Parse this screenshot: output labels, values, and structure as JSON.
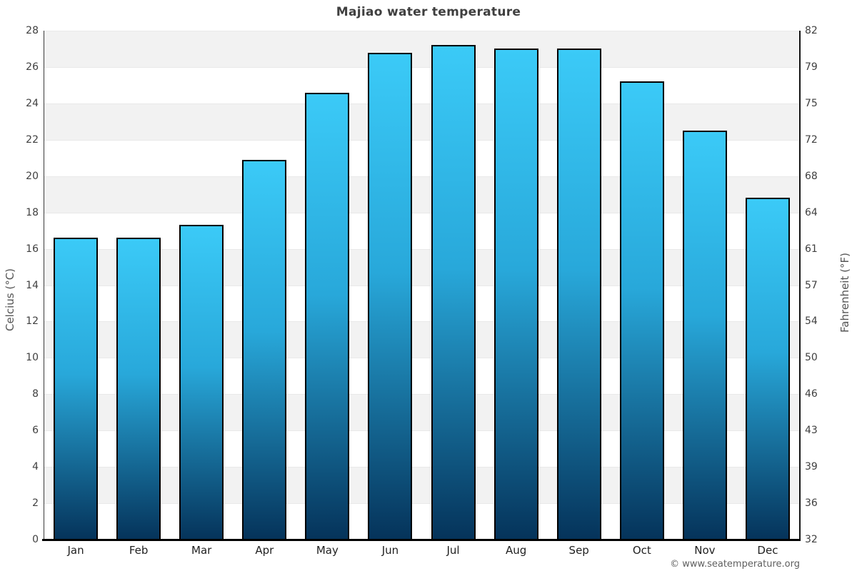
{
  "title": "Majiao water temperature",
  "watermark": "© www.seatemperature.org",
  "colors": {
    "bar_gradient_top": "#3bcaf7",
    "bar_gradient_mid": "#28a8da",
    "bar_gradient_bottom": "#05335a",
    "bar_border": "#000000",
    "band_gray": "#f2f2f2",
    "title_text": "#3f3f3f",
    "tick_text": "#3f3f3f",
    "month_text": "#1f1f1f",
    "watermark_text": "#5f5f5f"
  },
  "chart_data": {
    "type": "bar",
    "title": "Majiao water temperature",
    "categories": [
      "Jan",
      "Feb",
      "Mar",
      "Apr",
      "May",
      "Jun",
      "Jul",
      "Aug",
      "Sep",
      "Oct",
      "Nov",
      "Dec"
    ],
    "series": [
      {
        "name": "Celcius (°C)",
        "values": [
          16.6,
          16.6,
          17.3,
          20.9,
          24.6,
          26.8,
          27.2,
          27.0,
          27.0,
          25.2,
          22.5,
          18.8
        ]
      }
    ],
    "xlabel": "",
    "ylabel_left": "Celcius (°C)",
    "ylabel_right": "Fahrenheit (°F)",
    "ylim_c": [
      0,
      28
    ],
    "yticks_c": [
      0,
      2,
      4,
      6,
      8,
      10,
      12,
      14,
      16,
      18,
      20,
      22,
      24,
      26,
      28
    ],
    "yticks_f_labels": [
      "32",
      "36",
      "39",
      "43",
      "46",
      "50",
      "54",
      "57",
      "61",
      "64",
      "68",
      "72",
      "75",
      "79",
      "82"
    ],
    "grid": "alternating horizontal bands every 2°C, gray on odd bands",
    "legend": "none"
  }
}
